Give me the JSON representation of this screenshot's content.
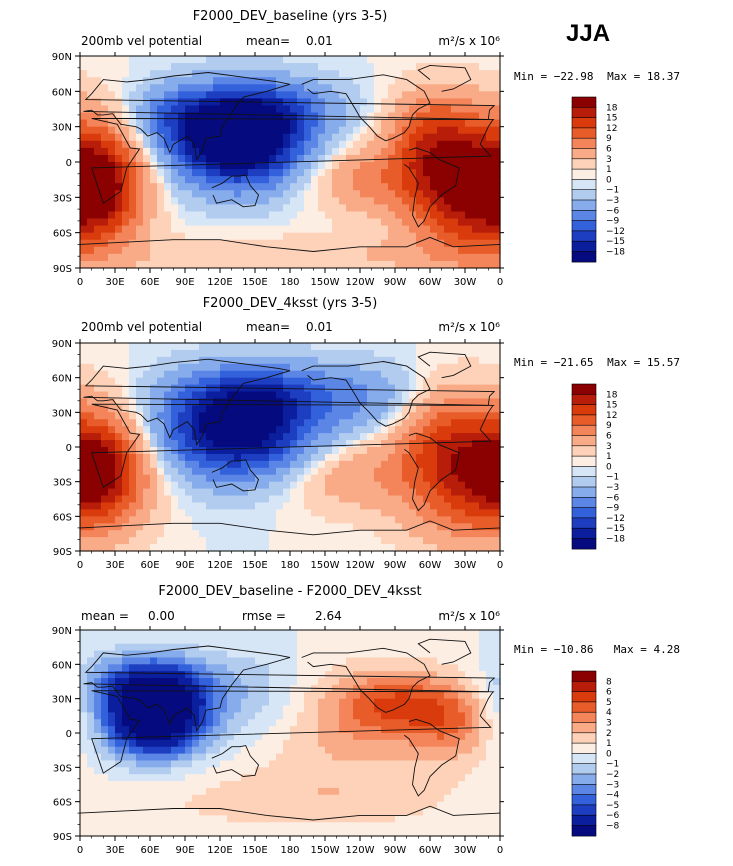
{
  "season": "JJA",
  "chart_data": [
    {
      "type": "heatmap",
      "title": "F2000_DEV_baseline (yrs 3-5)",
      "left_label": "200mb vel potential",
      "stat_label": "mean=",
      "stat_value": "0.01",
      "right_stat_label": "",
      "right_stat_value": "",
      "units": "m²/s x 10⁶",
      "min_text": "Min = −22.98",
      "max_text": "Max =  18.37",
      "x_ticks": [
        "0",
        "30E",
        "60E",
        "90E",
        "120E",
        "150E",
        "180",
        "150W",
        "120W",
        "90W",
        "60W",
        "30W",
        "0"
      ],
      "y_ticks": [
        "90N",
        "60N",
        "30N",
        "0",
        "30S",
        "60S",
        "90S"
      ],
      "levels": [
        "18",
        "15",
        "12",
        "9",
        "6",
        "3",
        "1",
        "0",
        "−1",
        "−3",
        "−6",
        "−9",
        "−12",
        "−15",
        "−18"
      ],
      "colors": [
        "#8b0000",
        "#b81d0a",
        "#d93b0c",
        "#e85c2a",
        "#f4845a",
        "#f9ab88",
        "#fdd2b8",
        "#fdeee4",
        "#d6e6f7",
        "#b2ccf0",
        "#86acec",
        "#5b86e6",
        "#3361dc",
        "#1d3ec0",
        "#0a1e9e",
        "#050a7e"
      ],
      "features": [
        {
          "lon": 135,
          "lat": 18,
          "amp": -27,
          "sx": 38,
          "sy": 26
        },
        {
          "lon": 160,
          "lat": 45,
          "amp": -8,
          "sx": 45,
          "sy": 18
        },
        {
          "lon": 80,
          "lat": 40,
          "amp": -6,
          "sx": 25,
          "sy": 18
        },
        {
          "lon": 335,
          "lat": -20,
          "amp": 20,
          "sx": 38,
          "sy": 40
        },
        {
          "lon": 300,
          "lat": 20,
          "amp": 8,
          "sx": 25,
          "sy": 28
        },
        {
          "lon": 20,
          "lat": -20,
          "amp": 14,
          "sx": 25,
          "sy": 32
        },
        {
          "lon": 245,
          "lat": -15,
          "amp": 6,
          "sx": 35,
          "sy": 20
        },
        {
          "lon": 180,
          "lat": -80,
          "amp": 3,
          "sx": 120,
          "sy": 12
        }
      ]
    },
    {
      "type": "heatmap",
      "title": "F2000_DEV_4ksst (yrs 3-5)",
      "left_label": "200mb vel potential",
      "stat_label": "mean=",
      "stat_value": "0.01",
      "right_stat_label": "",
      "right_stat_value": "",
      "units": "m²/s x 10⁶",
      "min_text": "Min = −21.65",
      "max_text": "Max =  15.57",
      "x_ticks": [
        "0",
        "30E",
        "60E",
        "90E",
        "120E",
        "150E",
        "180",
        "150W",
        "120W",
        "90W",
        "60W",
        "30W",
        "0"
      ],
      "y_ticks": [
        "90N",
        "60N",
        "30N",
        "0",
        "30S",
        "60S",
        "90S"
      ],
      "levels": [
        "18",
        "15",
        "12",
        "9",
        "6",
        "3",
        "1",
        "0",
        "−1",
        "−3",
        "−6",
        "−9",
        "−12",
        "−15",
        "−18"
      ],
      "colors": [
        "#8b0000",
        "#b81d0a",
        "#d93b0c",
        "#e85c2a",
        "#f4845a",
        "#f9ab88",
        "#fdd2b8",
        "#fdeee4",
        "#d6e6f7",
        "#b2ccf0",
        "#86acec",
        "#5b86e6",
        "#3361dc",
        "#1d3ec0",
        "#0a1e9e",
        "#050a7e"
      ],
      "features": [
        {
          "lon": 135,
          "lat": 15,
          "amp": -22,
          "sx": 45,
          "sy": 28
        },
        {
          "lon": 160,
          "lat": 48,
          "amp": -8,
          "sx": 50,
          "sy": 18
        },
        {
          "lon": 260,
          "lat": 40,
          "amp": -5,
          "sx": 40,
          "sy": 22
        },
        {
          "lon": 335,
          "lat": -20,
          "amp": 16,
          "sx": 40,
          "sy": 40
        },
        {
          "lon": 20,
          "lat": -20,
          "amp": 14,
          "sx": 28,
          "sy": 32
        },
        {
          "lon": 300,
          "lat": 20,
          "amp": 5,
          "sx": 25,
          "sy": 28
        },
        {
          "lon": 230,
          "lat": -25,
          "amp": 5,
          "sx": 40,
          "sy": 22
        }
      ]
    },
    {
      "type": "heatmap",
      "title": "F2000_DEV_baseline - F2000_DEV_4ksst",
      "left_label": "mean =",
      "stat_label": "",
      "stat_value": "0.00",
      "right_stat_label": "rmse =",
      "right_stat_value": "2.64",
      "units": "m²/s x 10⁶",
      "min_text": "Min = −10.86",
      "max_text": "Max =   4.28",
      "x_ticks": [
        "0",
        "30E",
        "60E",
        "90E",
        "120E",
        "150E",
        "180",
        "150W",
        "120W",
        "90W",
        "60W",
        "30W",
        "0"
      ],
      "y_ticks": [
        "90N",
        "60N",
        "30N",
        "0",
        "30S",
        "60S",
        "90S"
      ],
      "levels": [
        "8",
        "6",
        "5",
        "4",
        "3",
        "2",
        "1",
        "0",
        "−1",
        "−2",
        "−3",
        "−4",
        "−5",
        "−6",
        "−8"
      ],
      "colors": [
        "#8b0000",
        "#b81d0a",
        "#d93b0c",
        "#e85c2a",
        "#f4845a",
        "#f9ab88",
        "#fdd2b8",
        "#fdeee4",
        "#d6e6f7",
        "#b2ccf0",
        "#86acec",
        "#5b86e6",
        "#3361dc",
        "#1d3ec0",
        "#0a1e9e",
        "#050a7e"
      ],
      "features": [
        {
          "lon": 65,
          "lat": 15,
          "amp": -12,
          "sx": 30,
          "sy": 24
        },
        {
          "lon": 60,
          "lat": 45,
          "amp": -4,
          "sx": 40,
          "sy": 18
        },
        {
          "lon": 150,
          "lat": 30,
          "amp": -2,
          "sx": 30,
          "sy": 30
        },
        {
          "lon": 270,
          "lat": 25,
          "amp": 4,
          "sx": 35,
          "sy": 22
        },
        {
          "lon": 320,
          "lat": 10,
          "amp": 3,
          "sx": 25,
          "sy": 25
        },
        {
          "lon": 220,
          "lat": 0,
          "amp": 2,
          "sx": 60,
          "sy": 40
        },
        {
          "lon": 180,
          "lat": -60,
          "amp": 1.3,
          "sx": 120,
          "sy": 20
        }
      ]
    }
  ]
}
